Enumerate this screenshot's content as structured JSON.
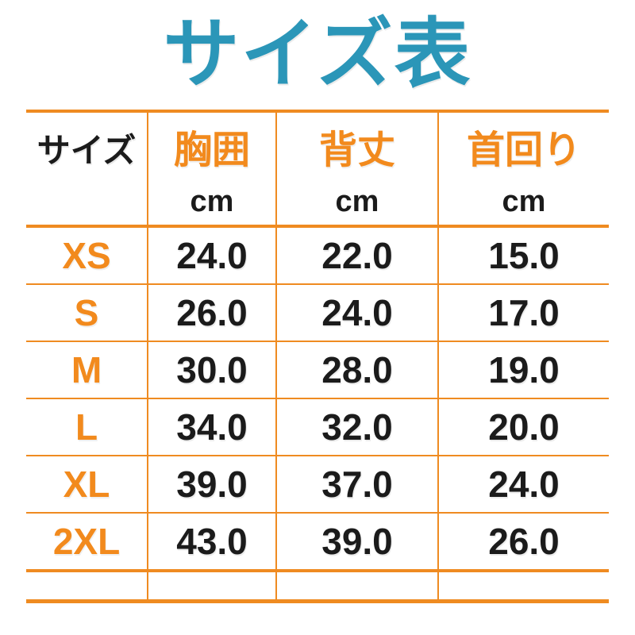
{
  "title": "サイズ表",
  "colors": {
    "title_teal": "#2b96b8",
    "accent_orange": "#f28a1d",
    "rule_orange": "#ef8b21",
    "text_black": "#1b1b1b",
    "background": "#ffffff"
  },
  "table": {
    "header": {
      "size_label": "サイズ",
      "columns": [
        {
          "label": "胸囲",
          "unit": "cm"
        },
        {
          "label": "背丈",
          "unit": "cm"
        },
        {
          "label": "首回り",
          "unit": "cm"
        }
      ]
    },
    "rows": [
      {
        "size": "XS",
        "chest": "24.0",
        "back": "22.0",
        "neck": "15.0"
      },
      {
        "size": "S",
        "chest": "26.0",
        "back": "24.0",
        "neck": "17.0"
      },
      {
        "size": "M",
        "chest": "30.0",
        "back": "28.0",
        "neck": "19.0"
      },
      {
        "size": "L",
        "chest": "34.0",
        "back": "32.0",
        "neck": "20.0"
      },
      {
        "size": "XL",
        "chest": "39.0",
        "back": "37.0",
        "neck": "24.0"
      },
      {
        "size": "2XL",
        "chest": "43.0",
        "back": "39.0",
        "neck": "26.0"
      }
    ]
  },
  "chart_data": {
    "type": "table",
    "title": "サイズ表",
    "columns": [
      "サイズ",
      "胸囲 cm",
      "背丈 cm",
      "首回り cm"
    ],
    "rows": [
      [
        "XS",
        24.0,
        22.0,
        15.0
      ],
      [
        "S",
        26.0,
        24.0,
        17.0
      ],
      [
        "M",
        30.0,
        28.0,
        19.0
      ],
      [
        "L",
        34.0,
        32.0,
        20.0
      ],
      [
        "XL",
        39.0,
        37.0,
        24.0
      ],
      [
        "2XL",
        43.0,
        39.0,
        26.0
      ]
    ],
    "layout_hints": {
      "title_color": "#2b96b8",
      "header_accent": "#f28a1d",
      "grid": "orange horizontal and vertical rules, thick top/bottom borders",
      "trailing_empty_row": true
    }
  }
}
